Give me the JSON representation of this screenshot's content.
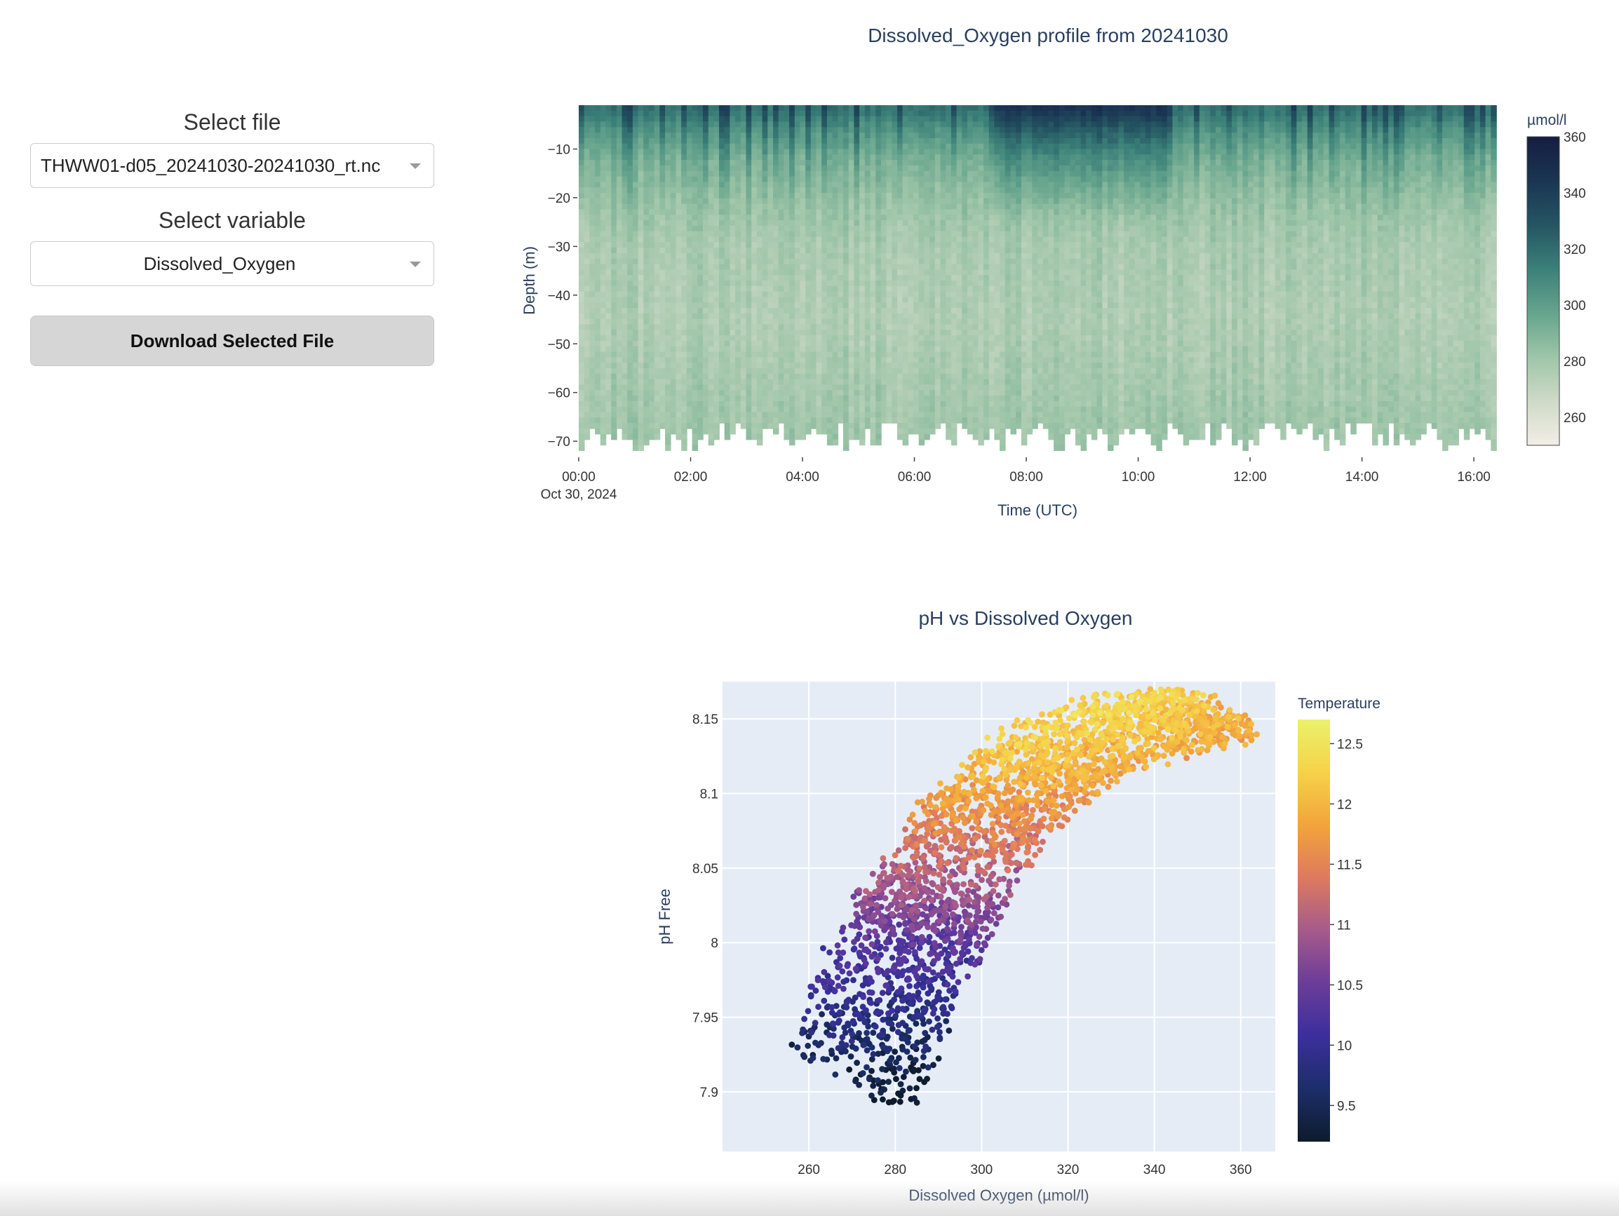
{
  "sidebar": {
    "file_label": "Select file",
    "file_value": "THWW01-d05_20241030-20241030_rt.nc",
    "variable_label": "Select variable",
    "variable_value": "Dissolved_Oxygen",
    "download_label": "Download Selected File"
  },
  "chart_data": [
    {
      "type": "heatmap",
      "title": "Dissolved_Oxygen profile from 20241030",
      "xlabel": "Time (UTC)",
      "ylabel": "Depth (m)",
      "x_ticks": [
        "00:00",
        "02:00",
        "04:00",
        "06:00",
        "08:00",
        "10:00",
        "12:00",
        "14:00",
        "16:00"
      ],
      "x_tick_sublabel": "Oct 30, 2024",
      "x_range_hours": [
        0,
        16.4
      ],
      "y_ticks": [
        -10,
        -20,
        -30,
        -40,
        -50,
        -60,
        -70
      ],
      "y_range": [
        -73,
        -1
      ],
      "colorbar": {
        "title": "µmol/l",
        "ticks": [
          360,
          340,
          320,
          300,
          280,
          260
        ],
        "range": [
          250,
          360
        ],
        "colors": [
          "#f1eee6",
          "#cfdac7",
          "#9ec5a8",
          "#66a48d",
          "#3b8079",
          "#255562",
          "#1a3553",
          "#161d41"
        ]
      },
      "profile_by_depth": {
        "depth": [
          -2,
          -6,
          -12,
          -20,
          -30,
          -45,
          -60,
          -72
        ],
        "value": [
          318,
          305,
          292,
          284,
          278,
          276,
          279,
          282
        ]
      },
      "high_oxygen_period_hours": [
        7.4,
        10.6
      ]
    },
    {
      "type": "scatter",
      "title": "pH vs Dissolved Oxygen",
      "xlabel": "Dissolved Oxygen (µmol/l)",
      "ylabel": "pH Free",
      "x_ticks": [
        260,
        280,
        300,
        320,
        340,
        360
      ],
      "xlim": [
        240,
        368
      ],
      "y_ticks": [
        7.9,
        7.95,
        8,
        8.05,
        8.1,
        8.15
      ],
      "ylim": [
        7.86,
        8.175
      ],
      "colorbar": {
        "title": "Temperature",
        "ticks": [
          12.5,
          12,
          11.5,
          11,
          10.5,
          10,
          9.5
        ],
        "range": [
          9.2,
          12.7
        ],
        "colors": [
          "#0d1b2c",
          "#1c2e6a",
          "#3b2f9c",
          "#6b3c9a",
          "#a65a8a",
          "#de7a5e",
          "#f2a43a",
          "#f6d24a",
          "#e9f26a"
        ]
      },
      "trend_points": [
        {
          "x": 270,
          "y": 7.905,
          "temp": 9.3
        },
        {
          "x": 276,
          "y": 7.95,
          "temp": 9.8
        },
        {
          "x": 282,
          "y": 8.0,
          "temp": 10.3
        },
        {
          "x": 290,
          "y": 8.03,
          "temp": 10.8
        },
        {
          "x": 300,
          "y": 8.08,
          "temp": 11.5
        },
        {
          "x": 315,
          "y": 8.12,
          "temp": 12.0
        },
        {
          "x": 335,
          "y": 8.145,
          "temp": 12.1
        },
        {
          "x": 355,
          "y": 8.155,
          "temp": 12.0
        }
      ]
    }
  ]
}
